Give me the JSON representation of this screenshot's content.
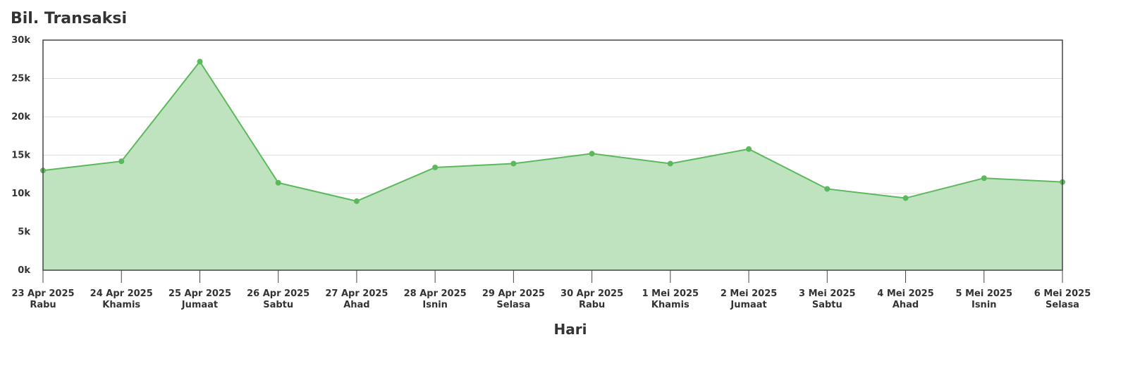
{
  "chart_data": {
    "type": "area",
    "title": "Bil. Transaksi",
    "x_label": "Hari",
    "categories": [
      [
        "23 Apr 2025",
        "Rabu"
      ],
      [
        "24 Apr 2025",
        "Khamis"
      ],
      [
        "25 Apr 2025",
        "Jumaat"
      ],
      [
        "26 Apr 2025",
        "Sabtu"
      ],
      [
        "27 Apr 2025",
        "Ahad"
      ],
      [
        "28 Apr 2025",
        "Isnin"
      ],
      [
        "29 Apr 2025",
        "Selasa"
      ],
      [
        "30 Apr 2025",
        "Rabu"
      ],
      [
        "1 Mei 2025",
        "Khamis"
      ],
      [
        "2 Mei 2025",
        "Jumaat"
      ],
      [
        "3 Mei 2025",
        "Sabtu"
      ],
      [
        "4 Mei 2025",
        "Ahad"
      ],
      [
        "5 Mei 2025",
        "Isnin"
      ],
      [
        "6 Mei 2025",
        "Selasa"
      ]
    ],
    "values": [
      13000,
      14200,
      27200,
      11400,
      9000,
      13400,
      13900,
      15200,
      13900,
      15800,
      10600,
      9400,
      12000,
      11500
    ],
    "color": "#5cb85c",
    "fill": "#bfe3bf",
    "ylim": [
      0,
      30000
    ],
    "yticks": [
      {
        "value": 0,
        "label": "0k"
      },
      {
        "value": 5000,
        "label": "5k"
      },
      {
        "value": 10000,
        "label": "10k"
      },
      {
        "value": 15000,
        "label": "15k"
      },
      {
        "value": 20000,
        "label": "20k"
      },
      {
        "value": 25000,
        "label": "25k"
      },
      {
        "value": 30000,
        "label": "30k"
      }
    ],
    "grid": true
  }
}
